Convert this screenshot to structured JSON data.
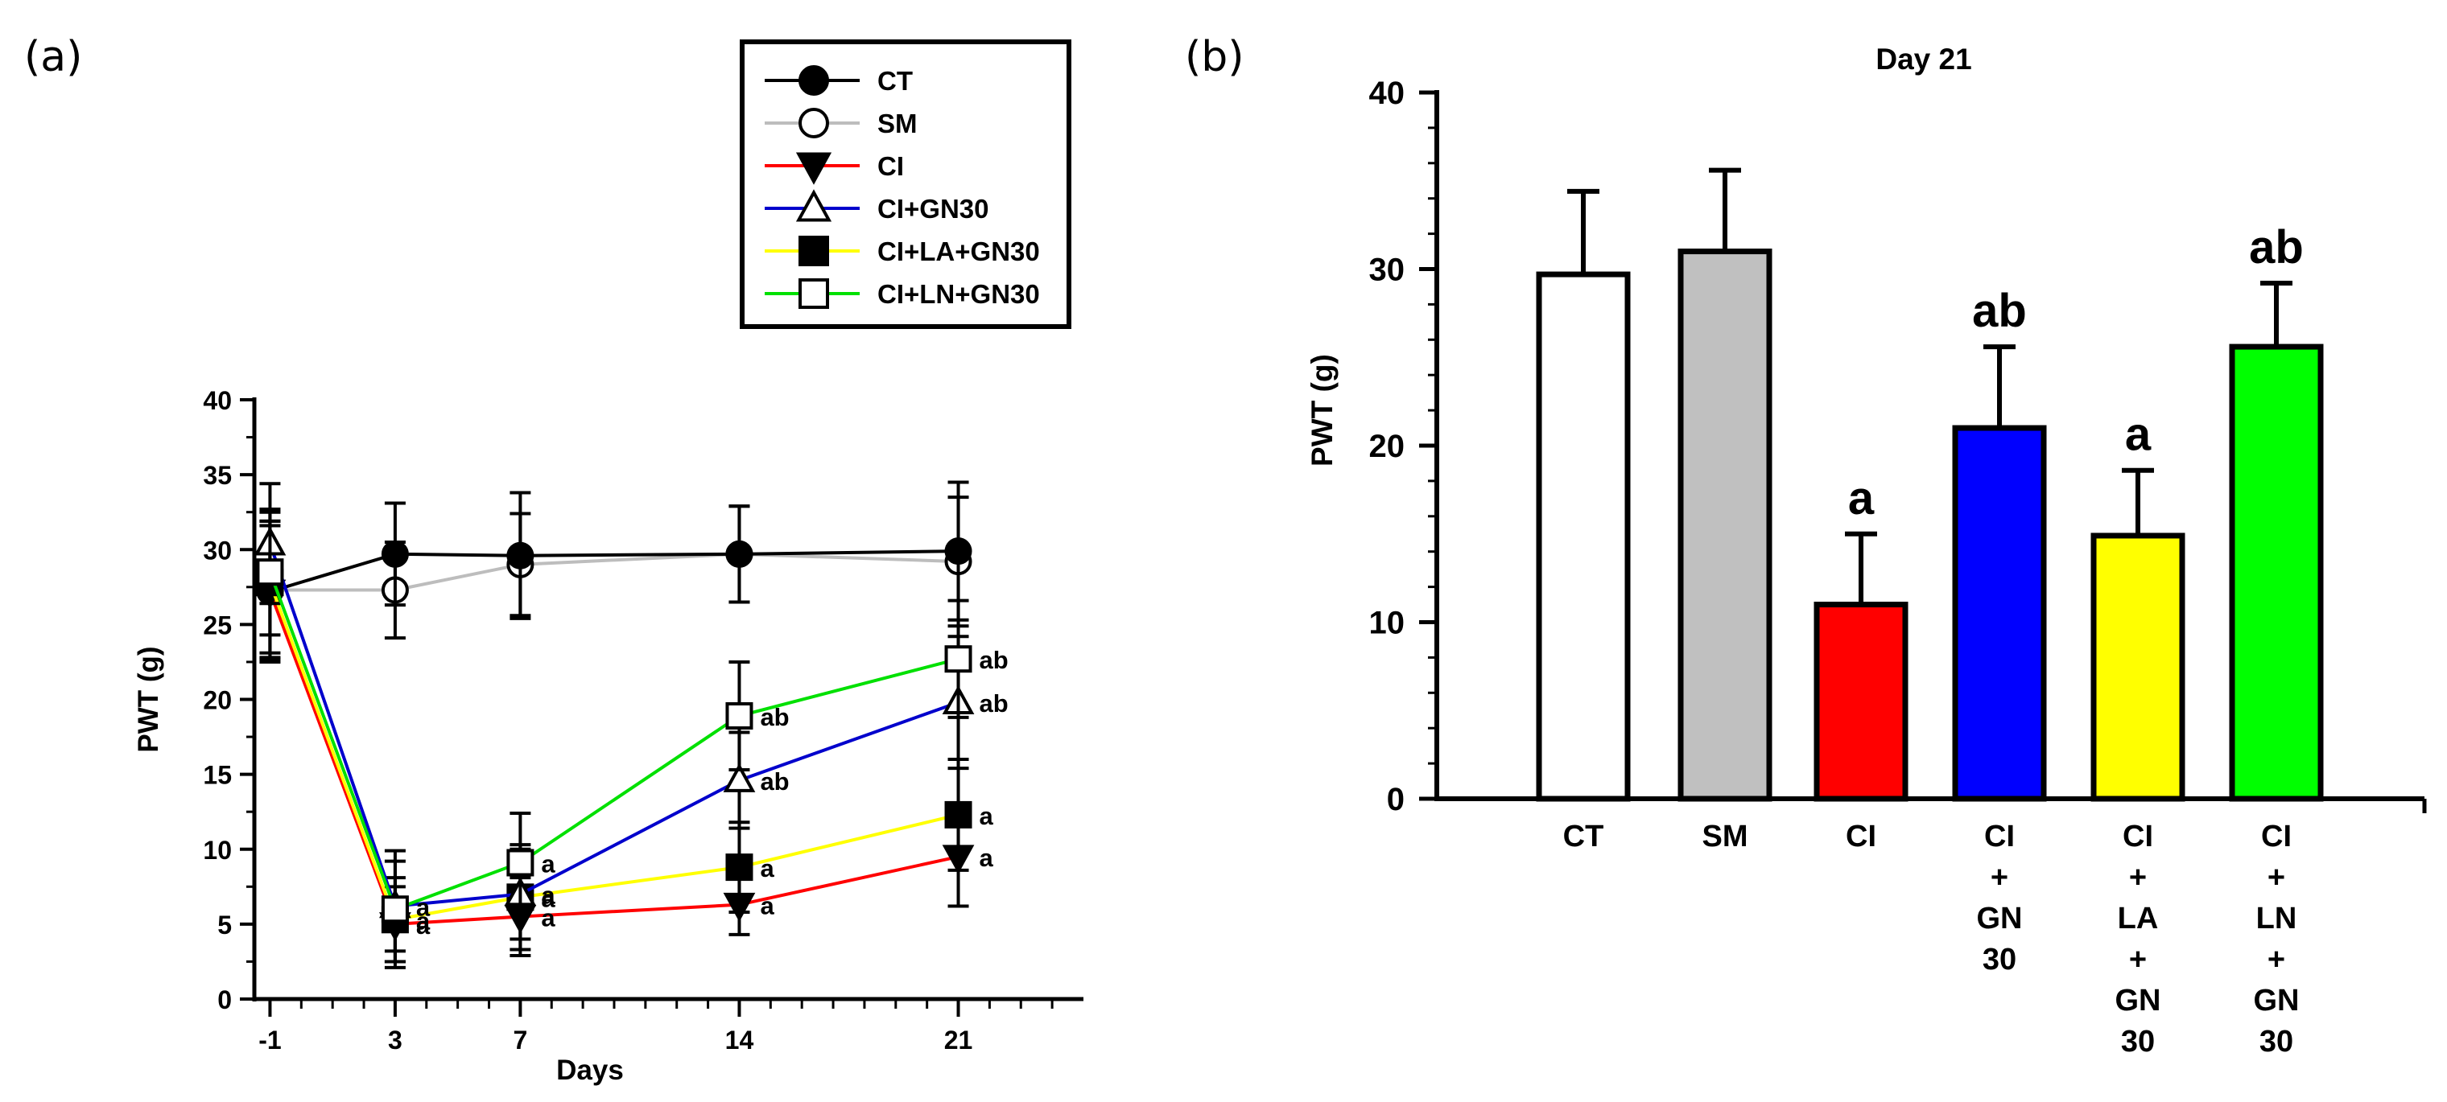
{
  "panel_labels": {
    "a": "(a)",
    "b": "(b)"
  },
  "chart_data": [
    {
      "type": "line",
      "id": "timecourse",
      "title": "",
      "xlabel": "Days",
      "ylabel": "PWT (g)",
      "x_ticks": [
        -1,
        3,
        7,
        14,
        21
      ],
      "x_tick_labels": [
        "-1",
        "3",
        "7",
        "14",
        "21"
      ],
      "xlim": [
        -1.5,
        25
      ],
      "ylim": [
        0,
        40
      ],
      "y_ticks": [
        0,
        5,
        10,
        15,
        20,
        25,
        30,
        35,
        40
      ],
      "y_tick_labels": [
        "0",
        "5",
        "10",
        "15",
        "20",
        "25",
        "30",
        "35",
        "40"
      ],
      "x": [
        -1,
        3,
        7,
        14,
        21
      ],
      "series": [
        {
          "name": "CT",
          "color": "#000000",
          "marker": "circle",
          "filled": true,
          "values": [
            27.2,
            29.7,
            29.6,
            29.7,
            29.9
          ],
          "errors": [
            4.4,
            3.4,
            4.2,
            3.2,
            4.6
          ],
          "annotations": [
            "",
            "",
            "",
            "",
            ""
          ]
        },
        {
          "name": "SM",
          "color": "#bdbdbd",
          "marker": "circle",
          "filled": false,
          "values": [
            27.3,
            27.3,
            29.0,
            29.7,
            29.2
          ],
          "errors": [
            4.6,
            3.2,
            3.4,
            3.2,
            4.3
          ],
          "annotations": [
            "",
            "",
            "",
            "",
            ""
          ]
        },
        {
          "name": "CI",
          "color": "#ff0000",
          "marker": "triangle-down",
          "filled": true,
          "values": [
            27.2,
            5.0,
            5.5,
            6.3,
            9.5
          ],
          "errors": [
            4.7,
            2.5,
            2.6,
            2.0,
            3.3
          ],
          "annotations": [
            "",
            "a",
            "a",
            "a",
            "a"
          ]
        },
        {
          "name": "CI+GN30",
          "color": "#0000cc",
          "marker": "triangle-up",
          "filled": false,
          "values": [
            30.4,
            6.2,
            7.0,
            14.6,
            19.8
          ],
          "errors": [
            4.0,
            3.0,
            3.0,
            3.2,
            4.4
          ],
          "annotations": [
            "",
            "a",
            "a",
            "ab",
            "ab"
          ]
        },
        {
          "name": "CI+LA+GN30",
          "color": "#ffff00",
          "marker": "square",
          "filled": true,
          "values": [
            27.8,
            5.3,
            6.8,
            8.8,
            12.3
          ],
          "errors": [
            4.7,
            2.8,
            3.5,
            3.0,
            3.7
          ],
          "annotations": [
            "",
            "a",
            "a",
            "a",
            "a"
          ]
        },
        {
          "name": "CI+LN+GN30",
          "color": "#00e000",
          "marker": "square",
          "filled": false,
          "values": [
            28.5,
            6.0,
            9.1,
            18.9,
            22.7
          ],
          "errors": [
            4.2,
            3.9,
            3.3,
            3.6,
            3.9
          ],
          "annotations": [
            "",
            "",
            "a",
            "ab",
            "ab"
          ]
        }
      ],
      "legend": {
        "placement": "top-right"
      }
    },
    {
      "type": "bar",
      "id": "day21",
      "title": "Day 21",
      "xlabel": "",
      "ylabel": "PWT (g)",
      "ylim": [
        0,
        40
      ],
      "y_ticks": [
        0,
        10,
        20,
        30,
        40
      ],
      "y_tick_labels": [
        "0",
        "10",
        "20",
        "30",
        "40"
      ],
      "categories": [
        "CT",
        "SM",
        "CI",
        "CI+GN30",
        "CI+LA+GN30",
        "CI+LN+GN30"
      ],
      "category_label_lines": [
        [
          "CT"
        ],
        [
          "SM"
        ],
        [
          "CI"
        ],
        [
          "CI",
          "+",
          "GN",
          "30"
        ],
        [
          "CI",
          "+",
          "LA",
          "+",
          "GN",
          "30"
        ],
        [
          "CI",
          "+",
          "LN",
          "+",
          "GN",
          "30"
        ]
      ],
      "values": [
        29.7,
        31.0,
        11.0,
        21.0,
        14.9,
        25.6
      ],
      "errors": [
        4.7,
        4.6,
        4.0,
        4.6,
        3.7,
        3.6
      ],
      "colors": [
        "#ffffff",
        "#c0c0c0",
        "#ff0000",
        "#0000ff",
        "#ffff00",
        "#00ff00"
      ],
      "annotations": [
        "",
        "",
        "a",
        "ab",
        "a",
        "ab"
      ]
    }
  ]
}
